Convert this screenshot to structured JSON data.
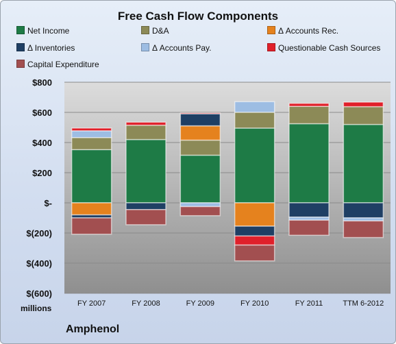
{
  "chart_data": {
    "type": "bar",
    "stacked": true,
    "title": "Free Cash Flow Components",
    "categories": [
      "FY 2007",
      "FY 2008",
      "FY 2009",
      "FY 2010",
      "FY 2011",
      "TTM 6-2012"
    ],
    "ylim": [
      -600,
      800
    ],
    "yticks": [
      800,
      600,
      400,
      200,
      0,
      -200,
      -400,
      -600
    ],
    "ytick_labels": [
      "$800",
      "$600",
      "$400",
      "$200",
      "$-",
      "$(200)",
      "$(400)",
      "$(600)"
    ],
    "unit_label": "millions",
    "grid": true,
    "legend_position": "top",
    "series": [
      {
        "name": "Net Income",
        "color": "#1e7b46",
        "values": [
          353,
          420,
          316,
          496,
          525,
          520
        ]
      },
      {
        "name": "D&A",
        "color": "#8c8a57",
        "values": [
          80,
          95,
          100,
          105,
          115,
          118
        ]
      },
      {
        "name": "Δ Accounts Rec.",
        "color": "#e5821e",
        "values": [
          -80,
          0,
          95,
          -155,
          0,
          0
        ]
      },
      {
        "name": "Δ Inventories",
        "color": "#1f3f64",
        "values": [
          -20,
          -45,
          80,
          -65,
          -95,
          -100
        ]
      },
      {
        "name": "Δ Accounts Pay.",
        "color": "#9dbde3",
        "values": [
          45,
          0,
          -25,
          70,
          -20,
          -20
        ]
      },
      {
        "name": "Questionable Cash Sources",
        "color": "#e0202a",
        "values": [
          18,
          20,
          5,
          -60,
          20,
          30
        ]
      },
      {
        "name": "Capital Expenditure",
        "color": "#a24f50",
        "values": [
          -108,
          -100,
          -60,
          -105,
          -100,
          -110
        ]
      }
    ]
  },
  "footer": {
    "company": "Amphenol"
  }
}
